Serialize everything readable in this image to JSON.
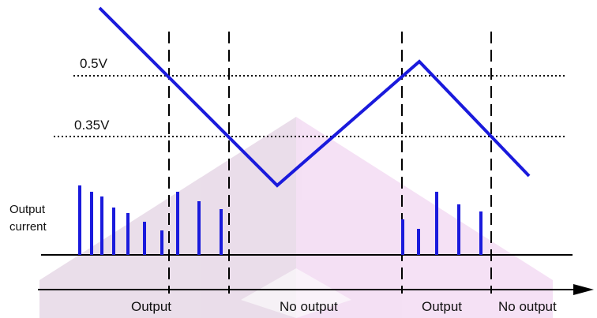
{
  "labels": {
    "v_high": "0.5V",
    "v_low": "0.35V",
    "output_current_1": "Output",
    "output_current_2": "current",
    "region_1": "Output",
    "region_2": "No output",
    "region_3": "Output",
    "region_4": "No output"
  },
  "colors": {
    "waveform": "#1a1adc",
    "pulse": "#1a1adc",
    "watermark_left": "#d9c3d9",
    "watermark_right": "#ecc8ec",
    "line": "#000000"
  },
  "thresholds_v": [
    0.5,
    0.35
  ],
  "pulse_heights": [
    [
      1.0,
      0.93,
      0.88,
      0.72,
      0.62,
      0.5,
      0.37
    ],
    [
      0.93,
      0.8,
      0.67
    ],
    [
      0.53,
      0.4,
      0.93,
      0.73,
      0.65
    ]
  ]
}
